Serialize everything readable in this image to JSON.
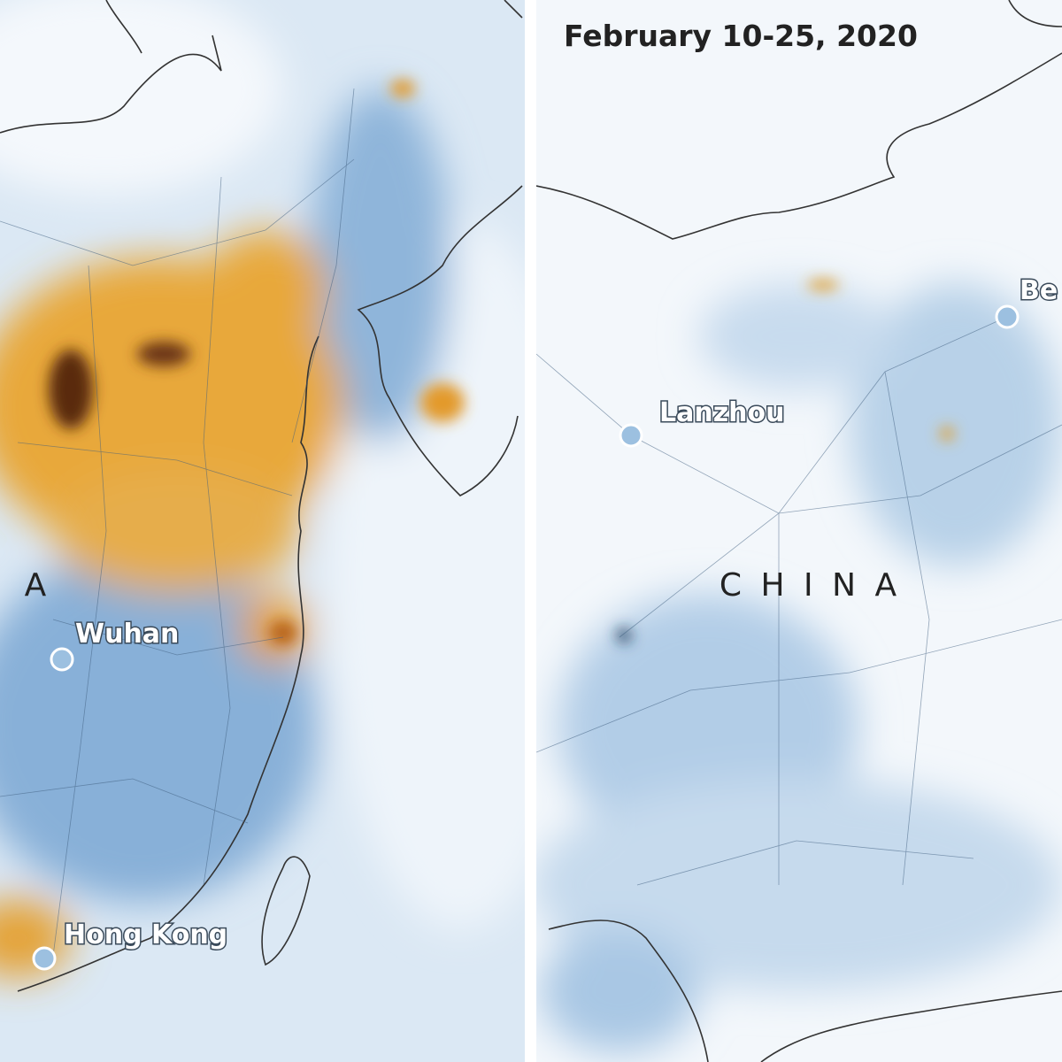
{
  "left_panel": {
    "labels": [
      "A",
      "Wuhan",
      "Hong Kong"
    ]
  },
  "right_panel": {
    "title": "February 10-25, 2020",
    "labels": [
      "Be",
      "Lanzhou",
      "C H I N A"
    ]
  }
}
